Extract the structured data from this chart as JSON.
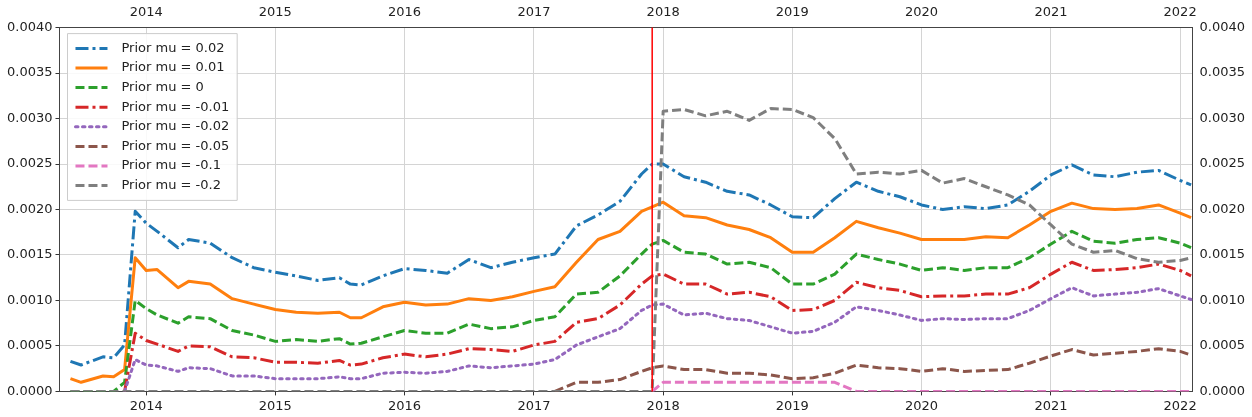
{
  "chart_data": {
    "type": "line",
    "x": [
      "2013-06",
      "2013-07",
      "2013-09",
      "2013-10",
      "2013-11",
      "2013-12",
      "2014-01",
      "2014-02",
      "2014-04",
      "2014-05",
      "2014-07",
      "2014-09",
      "2014-11",
      "2015-01",
      "2015-03",
      "2015-05",
      "2015-07",
      "2015-08",
      "2015-09",
      "2015-11",
      "2016-01",
      "2016-03",
      "2016-05",
      "2016-07",
      "2016-09",
      "2016-11",
      "2017-01",
      "2017-03",
      "2017-05",
      "2017-07",
      "2017-09",
      "2017-11",
      "2017-12",
      "2018-01",
      "2018-03",
      "2018-05",
      "2018-07",
      "2018-09",
      "2018-11",
      "2019-01",
      "2019-03",
      "2019-05",
      "2019-07",
      "2019-09",
      "2019-11",
      "2020-01",
      "2020-03",
      "2020-05",
      "2020-07",
      "2020-09",
      "2020-11",
      "2021-01",
      "2021-03",
      "2021-05",
      "2021-07",
      "2021-09",
      "2021-11",
      "2022-01",
      "2022-02"
    ],
    "series": [
      {
        "name": "Prior mu = 0.02",
        "color": "#1f77b4",
        "line_style": "dashdot",
        "values": [
          0.00033,
          0.00029,
          0.00038,
          0.00037,
          0.00051,
          0.00198,
          0.00185,
          0.00176,
          0.00158,
          0.00167,
          0.00163,
          0.00147,
          0.00136,
          0.00131,
          0.00127,
          0.00122,
          0.00125,
          0.00118,
          0.00117,
          0.00127,
          0.00135,
          0.00133,
          0.0013,
          0.00145,
          0.00136,
          0.00142,
          0.00147,
          0.00151,
          0.00182,
          0.00194,
          0.00209,
          0.00239,
          0.0025,
          0.0025,
          0.00236,
          0.0023,
          0.0022,
          0.00216,
          0.00205,
          0.00192,
          0.00191,
          0.00212,
          0.0023,
          0.0022,
          0.00214,
          0.00205,
          0.002,
          0.00203,
          0.00201,
          0.00205,
          0.0022,
          0.00238,
          0.00249,
          0.00238,
          0.00236,
          0.00241,
          0.00243,
          0.00232,
          0.00227
        ]
      },
      {
        "name": "Prior mu = 0.01",
        "color": "#ff7f0e",
        "line_style": "solid",
        "values": [
          0.00014,
          0.0001,
          0.00017,
          0.00016,
          0.00024,
          0.00147,
          0.00133,
          0.00134,
          0.00114,
          0.00121,
          0.00118,
          0.00102,
          0.00096,
          0.0009,
          0.00087,
          0.00086,
          0.00087,
          0.00081,
          0.00081,
          0.00093,
          0.00098,
          0.00095,
          0.00096,
          0.00102,
          0.001,
          0.00104,
          0.0011,
          0.00115,
          0.00142,
          0.00167,
          0.00176,
          0.00198,
          0.00203,
          0.00208,
          0.00193,
          0.00191,
          0.00183,
          0.00178,
          0.00169,
          0.00153,
          0.00153,
          0.00169,
          0.00187,
          0.0018,
          0.00174,
          0.00167,
          0.00167,
          0.00167,
          0.0017,
          0.00169,
          0.00183,
          0.00198,
          0.00207,
          0.00201,
          0.002,
          0.00201,
          0.00205,
          0.00196,
          0.00191
        ]
      },
      {
        "name": "Prior mu = 0",
        "color": "#2ca02c",
        "line_style": "dashed",
        "values": [
          0,
          0,
          0,
          0,
          0.0001,
          0.001,
          0.00091,
          0.00084,
          0.00075,
          0.00082,
          0.0008,
          0.00067,
          0.00062,
          0.00055,
          0.00057,
          0.00055,
          0.00058,
          0.00052,
          0.00053,
          0.0006,
          0.00067,
          0.00064,
          0.00064,
          0.00074,
          0.00069,
          0.00071,
          0.00078,
          0.00082,
          0.00107,
          0.00109,
          0.00127,
          0.00151,
          0.00162,
          0.00166,
          0.00153,
          0.00151,
          0.0014,
          0.00142,
          0.00136,
          0.00118,
          0.00118,
          0.00129,
          0.00151,
          0.00145,
          0.0014,
          0.00133,
          0.00136,
          0.00133,
          0.00136,
          0.00136,
          0.00147,
          0.00162,
          0.00176,
          0.00165,
          0.00163,
          0.00167,
          0.00169,
          0.00163,
          0.00158
        ]
      },
      {
        "name": "Prior mu = -0.01",
        "color": "#d62728",
        "line_style": "dashdot",
        "values": [
          null,
          null,
          null,
          null,
          0,
          0.00064,
          0.00056,
          0.00052,
          0.00044,
          0.0005,
          0.00049,
          0.00038,
          0.00037,
          0.00032,
          0.00032,
          0.00031,
          0.00034,
          0.00029,
          0.0003,
          0.00037,
          0.00041,
          0.00038,
          0.00041,
          0.00047,
          0.00046,
          0.00044,
          0.00051,
          0.00055,
          0.00076,
          0.0008,
          0.00095,
          0.00118,
          0.00127,
          0.00129,
          0.00118,
          0.00118,
          0.00107,
          0.00109,
          0.00104,
          0.00089,
          0.0009,
          0.001,
          0.0012,
          0.00114,
          0.00111,
          0.00104,
          0.00105,
          0.00105,
          0.00107,
          0.00107,
          0.00114,
          0.00129,
          0.00142,
          0.00133,
          0.00134,
          0.00136,
          0.0014,
          0.00133,
          0.00127
        ]
      },
      {
        "name": "Prior mu = -0.02",
        "color": "#9467bd",
        "line_style": "dotted",
        "values": [
          null,
          null,
          null,
          null,
          0,
          0.00035,
          0.00029,
          0.00028,
          0.00022,
          0.00026,
          0.00025,
          0.00017,
          0.00017,
          0.00014,
          0.00014,
          0.00014,
          0.00016,
          0.00014,
          0.00014,
          0.0002,
          0.00021,
          0.0002,
          0.00022,
          0.00028,
          0.00026,
          0.00028,
          0.0003,
          0.00035,
          0.00051,
          0.0006,
          0.00069,
          0.00089,
          0.00095,
          0.00096,
          0.00084,
          0.00086,
          0.0008,
          0.00078,
          0.00071,
          0.00064,
          0.00066,
          0.00076,
          0.00093,
          0.00089,
          0.00084,
          0.00078,
          0.0008,
          0.00079,
          0.0008,
          0.0008,
          0.00089,
          0.00102,
          0.00114,
          0.00105,
          0.00107,
          0.00109,
          0.00113,
          0.00105,
          0.00101
        ]
      },
      {
        "name": "Prior mu = -0.05",
        "color": "#8c564b",
        "line_style": "dashed",
        "values": [
          null,
          null,
          null,
          null,
          null,
          null,
          null,
          null,
          null,
          null,
          null,
          null,
          null,
          null,
          null,
          null,
          null,
          null,
          null,
          null,
          null,
          null,
          null,
          null,
          null,
          null,
          null,
          0,
          0.0001,
          0.0001,
          0.00013,
          0.00022,
          0.00026,
          0.00028,
          0.00024,
          0.00024,
          0.0002,
          0.0002,
          0.00018,
          0.00014,
          0.00015,
          0.0002,
          0.00029,
          0.00026,
          0.00025,
          0.00022,
          0.00025,
          0.00022,
          0.00023,
          0.00024,
          0.00031,
          0.00039,
          0.00046,
          0.0004,
          0.00042,
          0.00044,
          0.00047,
          0.00044,
          0.0004
        ]
      },
      {
        "name": "Prior mu = -0.1",
        "color": "#e377c2",
        "line_style": "dashed",
        "values": [
          null,
          null,
          null,
          null,
          null,
          null,
          null,
          null,
          null,
          null,
          null,
          null,
          null,
          null,
          null,
          null,
          null,
          null,
          null,
          null,
          null,
          null,
          null,
          null,
          null,
          null,
          null,
          null,
          null,
          null,
          null,
          null,
          0,
          0.0001,
          0.0001,
          0.0001,
          0.0001,
          0.0001,
          0.0001,
          0.0001,
          0.0001,
          0.0001,
          0,
          0,
          0,
          0,
          0,
          0,
          0,
          0,
          0,
          0,
          0,
          0,
          0,
          0,
          0,
          0,
          0
        ]
      },
      {
        "name": "Prior mu = -0.2",
        "color": "#7f7f7f",
        "line_style": "dashed",
        "values": [
          0,
          0,
          0,
          0,
          0,
          0,
          0,
          0,
          0,
          0,
          0,
          0,
          0,
          0,
          0,
          0,
          0,
          0,
          0,
          0,
          0,
          0,
          0,
          0,
          0,
          0,
          0,
          0,
          0,
          0,
          0,
          0,
          0,
          0.00308,
          0.0031,
          0.00303,
          0.00308,
          0.00298,
          0.00311,
          0.0031,
          0.00301,
          0.00278,
          0.00239,
          0.00241,
          0.00239,
          0.00243,
          0.00229,
          0.00234,
          0.00225,
          0.00216,
          0.00205,
          0.00183,
          0.00162,
          0.00153,
          0.00155,
          0.00146,
          0.00142,
          0.00144,
          0.00147
        ]
      }
    ],
    "xlim": [
      "2013-05-01",
      "2022-02-05"
    ],
    "xticks": [
      "2014",
      "2015",
      "2016",
      "2017",
      "2018",
      "2019",
      "2020",
      "2021",
      "2022"
    ],
    "x2lim": [
      "2013-05-01",
      "2022-02-05"
    ],
    "x2ticks": [
      "2014",
      "2015",
      "2016",
      "2017",
      "2018",
      "2019",
      "2020",
      "2021",
      "2022"
    ],
    "ylim": [
      0,
      0.004
    ],
    "yticks": [
      {
        "value": 0,
        "label": "0.0000"
      },
      {
        "value": 0.0005,
        "label": "0.0005"
      },
      {
        "value": 0.001,
        "label": "0.0010"
      },
      {
        "value": 0.0015,
        "label": "0.0015"
      },
      {
        "value": 0.002,
        "label": "0.0020"
      },
      {
        "value": 0.0025,
        "label": "0.0025"
      },
      {
        "value": 0.003,
        "label": "0.0030"
      },
      {
        "value": 0.0035,
        "label": "0.0035"
      },
      {
        "value": 0.004,
        "label": "0.0040"
      }
    ],
    "y2lim": [
      0,
      0.004
    ],
    "y2ticks": [
      {
        "value": 0,
        "label": "0.0000"
      },
      {
        "value": 0.0005,
        "label": "0.0005"
      },
      {
        "value": 0.001,
        "label": "0.0010"
      },
      {
        "value": 0.0015,
        "label": "0.0015"
      },
      {
        "value": 0.002,
        "label": "0.0020"
      },
      {
        "value": 0.0025,
        "label": "0.0025"
      },
      {
        "value": 0.003,
        "label": "0.0030"
      },
      {
        "value": 0.0035,
        "label": "0.0035"
      },
      {
        "value": 0.004,
        "label": "0.0040"
      }
    ],
    "ref_lines": [
      {
        "axis": "x",
        "value": "2017-12-01",
        "color": "#ff0000"
      }
    ],
    "grid": true,
    "legend": "top left"
  }
}
